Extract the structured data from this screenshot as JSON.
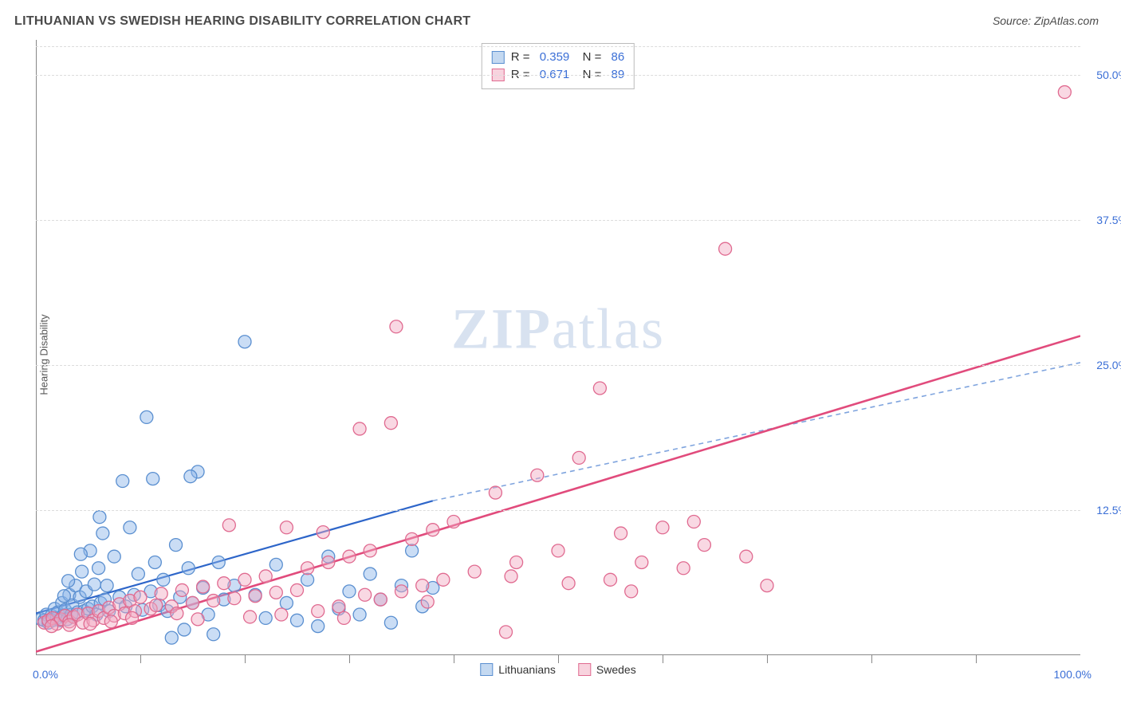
{
  "title": "LITHUANIAN VS SWEDISH HEARING DISABILITY CORRELATION CHART",
  "source": "Source: ZipAtlas.com",
  "y_axis_label": "Hearing Disability",
  "watermark": {
    "left": "ZIP",
    "right": "atlas"
  },
  "chart": {
    "type": "scatter",
    "xlim": [
      0,
      100
    ],
    "ylim": [
      0,
      53
    ],
    "x_start_label": "0.0%",
    "x_end_label": "100.0%",
    "x_tick_step": 10,
    "y_ticks": [
      {
        "v": 12.5,
        "label": "12.5%"
      },
      {
        "v": 25.0,
        "label": "25.0%"
      },
      {
        "v": 37.5,
        "label": "37.5%"
      },
      {
        "v": 50.0,
        "label": "50.0%"
      }
    ],
    "grid_color": "#dcdcdc",
    "background_color": "#ffffff",
    "marker_radius": 8,
    "marker_opacity": 0.45,
    "series": [
      {
        "name": "Lithuanians",
        "color_fill": "#8ab4e8",
        "color_stroke": "#5a8fd0",
        "R": "0.359",
        "N": "86",
        "trend": {
          "x1": 0,
          "y1": 3.6,
          "x2": 38,
          "y2": 13.3,
          "x2_dash": 100,
          "y2_dash": 25.2,
          "solid_color": "#2d65c9",
          "dash_color": "#7fa4de",
          "width": 2.2
        },
        "points": [
          [
            0.5,
            3.1
          ],
          [
            0.8,
            3.0
          ],
          [
            1.0,
            3.5
          ],
          [
            1.2,
            2.8
          ],
          [
            1.5,
            3.4
          ],
          [
            1.6,
            3.0
          ],
          [
            1.8,
            4.0
          ],
          [
            2.0,
            3.2
          ],
          [
            2.1,
            3.7
          ],
          [
            2.3,
            3.0
          ],
          [
            2.5,
            4.5
          ],
          [
            2.6,
            3.4
          ],
          [
            2.8,
            3.9
          ],
          [
            3.0,
            3.1
          ],
          [
            3.2,
            5.2
          ],
          [
            3.4,
            3.5
          ],
          [
            3.5,
            4.3
          ],
          [
            3.8,
            6.0
          ],
          [
            4.0,
            3.7
          ],
          [
            4.2,
            5.0
          ],
          [
            4.4,
            7.2
          ],
          [
            4.6,
            3.8
          ],
          [
            4.8,
            5.5
          ],
          [
            5.0,
            4.0
          ],
          [
            5.2,
            9.0
          ],
          [
            5.4,
            4.2
          ],
          [
            5.6,
            6.1
          ],
          [
            5.8,
            3.5
          ],
          [
            6.0,
            7.5
          ],
          [
            6.2,
            4.5
          ],
          [
            6.4,
            10.5
          ],
          [
            6.6,
            4.8
          ],
          [
            6.8,
            6.0
          ],
          [
            7.0,
            3.8
          ],
          [
            7.5,
            8.5
          ],
          [
            8.0,
            5.0
          ],
          [
            8.3,
            15.0
          ],
          [
            8.6,
            4.2
          ],
          [
            9.0,
            11.0
          ],
          [
            9.4,
            5.2
          ],
          [
            9.8,
            7.0
          ],
          [
            10.2,
            3.9
          ],
          [
            10.6,
            20.5
          ],
          [
            11.0,
            5.5
          ],
          [
            11.4,
            8.0
          ],
          [
            11.8,
            4.3
          ],
          [
            12.2,
            6.5
          ],
          [
            12.6,
            3.8
          ],
          [
            13.0,
            1.5
          ],
          [
            13.4,
            9.5
          ],
          [
            13.8,
            5.0
          ],
          [
            14.2,
            2.2
          ],
          [
            14.6,
            7.5
          ],
          [
            15.0,
            4.5
          ],
          [
            15.5,
            15.8
          ],
          [
            16.0,
            5.8
          ],
          [
            16.5,
            3.5
          ],
          [
            17.0,
            1.8
          ],
          [
            17.5,
            8.0
          ],
          [
            18.0,
            4.8
          ],
          [
            19.0,
            6.0
          ],
          [
            20.0,
            27.0
          ],
          [
            21.0,
            5.2
          ],
          [
            22.0,
            3.2
          ],
          [
            23.0,
            7.8
          ],
          [
            24.0,
            4.5
          ],
          [
            25.0,
            3.0
          ],
          [
            26.0,
            6.5
          ],
          [
            27.0,
            2.5
          ],
          [
            28.0,
            8.5
          ],
          [
            29.0,
            4.0
          ],
          [
            30.0,
            5.5
          ],
          [
            31.0,
            3.5
          ],
          [
            32.0,
            7.0
          ],
          [
            33.0,
            4.8
          ],
          [
            34.0,
            2.8
          ],
          [
            35.0,
            6.0
          ],
          [
            36.0,
            9.0
          ],
          [
            37.0,
            4.2
          ],
          [
            38.0,
            5.8
          ],
          [
            11.2,
            15.2
          ],
          [
            14.8,
            15.4
          ],
          [
            6.1,
            11.9
          ],
          [
            4.3,
            8.7
          ],
          [
            3.1,
            6.4
          ],
          [
            2.7,
            5.1
          ]
        ]
      },
      {
        "name": "Swedes",
        "color_fill": "#f2a8c0",
        "color_stroke": "#e06a90",
        "R": "0.671",
        "N": "89",
        "trend": {
          "x1": 0,
          "y1": 0.3,
          "x2": 100,
          "y2": 27.5,
          "solid_color": "#e14b7c",
          "width": 2.6
        },
        "points": [
          [
            0.8,
            2.8
          ],
          [
            1.2,
            3.0
          ],
          [
            1.6,
            3.2
          ],
          [
            2.0,
            2.7
          ],
          [
            2.4,
            3.1
          ],
          [
            2.8,
            3.4
          ],
          [
            3.2,
            2.9
          ],
          [
            3.6,
            3.3
          ],
          [
            4.0,
            3.5
          ],
          [
            4.5,
            2.8
          ],
          [
            5.0,
            3.6
          ],
          [
            5.5,
            3.0
          ],
          [
            6.0,
            3.8
          ],
          [
            6.5,
            3.2
          ],
          [
            7.0,
            4.1
          ],
          [
            7.5,
            3.4
          ],
          [
            8.0,
            4.4
          ],
          [
            8.5,
            3.6
          ],
          [
            9.0,
            4.7
          ],
          [
            9.5,
            3.8
          ],
          [
            10.0,
            5.0
          ],
          [
            11.0,
            4.0
          ],
          [
            12.0,
            5.3
          ],
          [
            13.0,
            4.2
          ],
          [
            14.0,
            5.6
          ],
          [
            15.0,
            4.5
          ],
          [
            16.0,
            5.9
          ],
          [
            17.0,
            4.7
          ],
          [
            18.0,
            6.2
          ],
          [
            19.0,
            4.9
          ],
          [
            20.0,
            6.5
          ],
          [
            21.0,
            5.1
          ],
          [
            22.0,
            6.8
          ],
          [
            23.0,
            5.4
          ],
          [
            24.0,
            11.0
          ],
          [
            25.0,
            5.6
          ],
          [
            26.0,
            7.5
          ],
          [
            27.0,
            3.8
          ],
          [
            28.0,
            8.0
          ],
          [
            29.0,
            4.2
          ],
          [
            30.0,
            8.5
          ],
          [
            31.0,
            19.5
          ],
          [
            32.0,
            9.0
          ],
          [
            33.0,
            4.8
          ],
          [
            34.0,
            20.0
          ],
          [
            35.0,
            5.5
          ],
          [
            36.0,
            10.0
          ],
          [
            37.0,
            6.0
          ],
          [
            38.0,
            10.8
          ],
          [
            39.0,
            6.5
          ],
          [
            40.0,
            11.5
          ],
          [
            42.0,
            7.2
          ],
          [
            44.0,
            14.0
          ],
          [
            45.0,
            2.0
          ],
          [
            46.0,
            8.0
          ],
          [
            48.0,
            15.5
          ],
          [
            50.0,
            9.0
          ],
          [
            52.0,
            17.0
          ],
          [
            54.0,
            23.0
          ],
          [
            55.0,
            6.5
          ],
          [
            56.0,
            10.5
          ],
          [
            58.0,
            8.0
          ],
          [
            60.0,
            11.0
          ],
          [
            62.0,
            7.5
          ],
          [
            64.0,
            9.5
          ],
          [
            66.0,
            35.0
          ],
          [
            68.0,
            8.5
          ],
          [
            70.0,
            6.0
          ],
          [
            34.5,
            28.3
          ],
          [
            98.5,
            48.5
          ],
          [
            18.5,
            11.2
          ],
          [
            27.5,
            10.6
          ],
          [
            31.5,
            5.2
          ],
          [
            37.5,
            4.6
          ],
          [
            23.5,
            3.5
          ],
          [
            29.5,
            3.2
          ],
          [
            15.5,
            3.1
          ],
          [
            20.5,
            3.3
          ],
          [
            45.5,
            6.8
          ],
          [
            51.0,
            6.2
          ],
          [
            57.0,
            5.5
          ],
          [
            63.0,
            11.5
          ],
          [
            13.5,
            3.6
          ],
          [
            11.5,
            4.3
          ],
          [
            9.2,
            3.2
          ],
          [
            7.2,
            2.9
          ],
          [
            5.2,
            2.7
          ],
          [
            3.2,
            2.6
          ],
          [
            1.5,
            2.5
          ]
        ]
      }
    ],
    "bottom_legend": [
      {
        "swatch": "blue",
        "label": "Lithuanians"
      },
      {
        "swatch": "pink",
        "label": "Swedes"
      }
    ]
  }
}
